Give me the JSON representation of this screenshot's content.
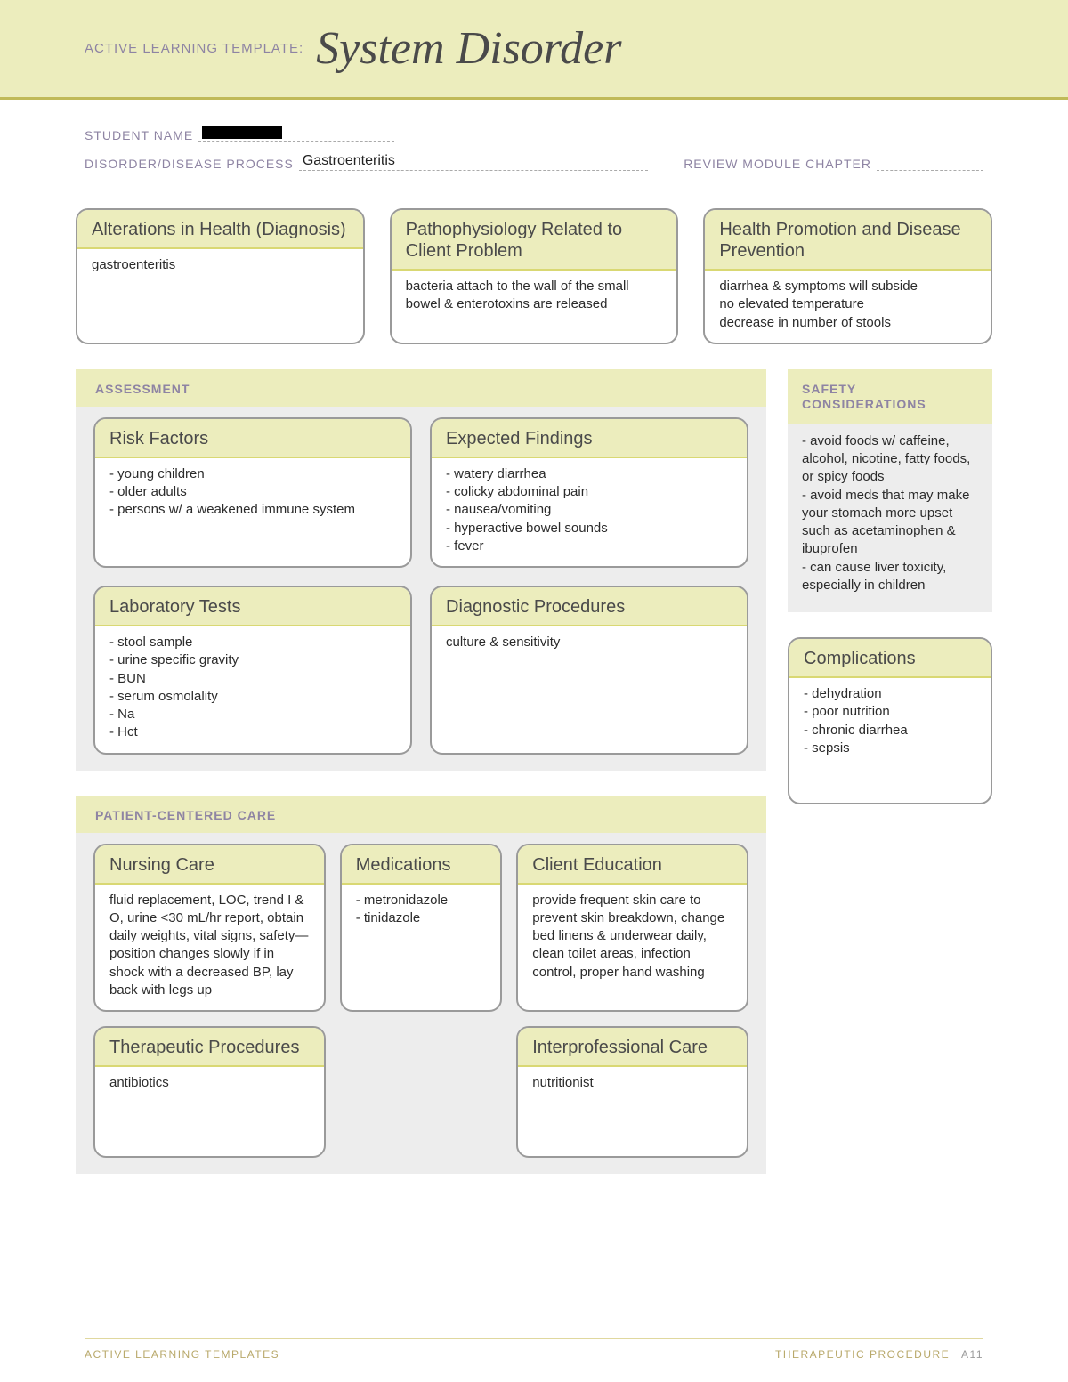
{
  "banner": {
    "label": "ACTIVE LEARNING TEMPLATE:",
    "title": "System Disorder"
  },
  "meta": {
    "student_label": "STUDENT NAME",
    "student_value": "",
    "disorder_label": "DISORDER/DISEASE PROCESS",
    "disorder_value": "Gastroenteritis",
    "chapter_label": "REVIEW MODULE CHAPTER",
    "chapter_value": ""
  },
  "top_cards": {
    "alterations": {
      "title": "Alterations in Health (Diagnosis)",
      "body": "gastroenteritis"
    },
    "patho": {
      "title": "Pathophysiology Related to Client Problem",
      "body": "bacteria attach to the wall of the small bowel & enterotoxins are released"
    },
    "promo": {
      "title": "Health Promotion and Disease Prevention",
      "body": "diarrhea & symptoms will subside\nno elevated temperature\ndecrease in number of stools"
    }
  },
  "assessment": {
    "heading": "ASSESSMENT",
    "risk": {
      "title": "Risk Factors",
      "body": "- young children\n- older adults\n- persons w/ a weakened immune system"
    },
    "findings": {
      "title": "Expected Findings",
      "body": "- watery diarrhea\n- colicky abdominal pain\n- nausea/vomiting\n- hyperactive bowel sounds\n- fever"
    },
    "labs": {
      "title": "Laboratory Tests",
      "body": "- stool sample\n- urine specific gravity\n- BUN\n- serum osmolality\n- Na\n- Hct"
    },
    "diag": {
      "title": "Diagnostic Procedures",
      "body": "culture & sensitivity"
    }
  },
  "pcc": {
    "heading": "PATIENT-CENTERED CARE",
    "nursing": {
      "title": "Nursing Care",
      "body": "fluid replacement, LOC, trend I & O, urine <30 mL/hr report, obtain daily weights, vital signs, safety—position changes slowly if in shock with a decreased BP, lay back with legs up"
    },
    "meds": {
      "title": "Medications",
      "body": "- metronidazole\n- tinidazole"
    },
    "edu": {
      "title": "Client Education",
      "body": "provide frequent skin care to prevent skin breakdown, change bed linens & underwear daily, clean toilet areas, infection control, proper hand washing"
    },
    "therapeutic": {
      "title": "Therapeutic Procedures",
      "body": "antibiotics"
    },
    "inter": {
      "title": "Interprofessional Care",
      "body": "nutritionist"
    }
  },
  "safety": {
    "heading": "SAFETY CONSIDERATIONS",
    "body": "- avoid foods w/ caffeine, alcohol, nicotine, fatty foods, or spicy foods\n- avoid meds that may make your stomach more upset such as acetaminophen & ibuprofen\n- can cause liver toxicity, especially in children"
  },
  "complications": {
    "title": "Complications",
    "body": "- dehydration\n- poor nutrition\n- chronic diarrhea\n- sepsis"
  },
  "footer": {
    "left": "ACTIVE LEARNING TEMPLATES",
    "right": "THERAPEUTIC PROCEDURE",
    "page": "A11"
  }
}
